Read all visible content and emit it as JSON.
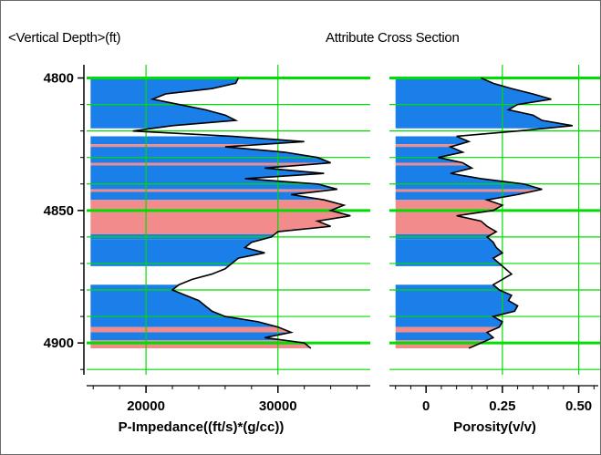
{
  "header": {
    "depth_label": "<Vertical Depth>(ft)",
    "title": "Attribute Cross Section"
  },
  "colors": {
    "grid": "#00dd00",
    "fill_blue": "#1a7fe8",
    "fill_pink": "#f28c8c",
    "curve": "#000000",
    "axis": "#000000"
  },
  "chart_data": {
    "type": "area",
    "depth_axis": {
      "label": "<Vertical Depth>(ft)",
      "range": [
        4795,
        4912
      ],
      "ticks": [
        4800,
        4850,
        4900
      ],
      "reversed": true
    },
    "tracks": [
      {
        "name": "P-Impedance",
        "xlabel": "P-Impedance((ft/s)*(g/cc))",
        "xlim": [
          15500,
          37000
        ],
        "ticks": [
          20000,
          30000
        ],
        "tick_labels": [
          "20000",
          "30000"
        ],
        "grid_x": [
          20000,
          30000
        ],
        "fill_base": 15800,
        "depth": [
          4800,
          4802,
          4804,
          4806,
          4808,
          4810,
          4812,
          4814,
          4816,
          4818,
          4820,
          4822,
          4824,
          4826,
          4828,
          4830,
          4832,
          4834,
          4836,
          4838,
          4840,
          4842,
          4844,
          4846,
          4848,
          4850,
          4852,
          4854,
          4856,
          4858,
          4860,
          4862,
          4864,
          4866,
          4868,
          4870,
          4872,
          4874,
          4876,
          4878,
          4880,
          4882,
          4884,
          4886,
          4888,
          4890,
          4892,
          4894,
          4896,
          4898,
          4900,
          4902
        ],
        "values": [
          27000,
          26800,
          25000,
          21500,
          20500,
          22500,
          24500,
          26000,
          26800,
          22000,
          19000,
          26500,
          32000,
          26000,
          30500,
          33000,
          34000,
          29000,
          33500,
          27500,
          33000,
          34500,
          31000,
          33500,
          35000,
          34000,
          35500,
          33000,
          34000,
          30000,
          29500,
          28000,
          27500,
          29000,
          27000,
          26500,
          26000,
          25000,
          23500,
          22500,
          22000,
          23000,
          24000,
          24500,
          25000,
          26000,
          28500,
          30000,
          31000,
          29000,
          32000,
          32500
        ]
      },
      {
        "name": "Porosity",
        "xlabel": "Porosity(v/v)",
        "xlim": [
          -0.12,
          0.57
        ],
        "ticks": [
          0,
          0.25,
          0.5
        ],
        "tick_labels": [
          "0",
          "0.25",
          "0.50"
        ],
        "grid_x": [
          0.25,
          0.5
        ],
        "fill_base": -0.1,
        "depth": [
          4800,
          4802,
          4804,
          4806,
          4808,
          4810,
          4812,
          4814,
          4816,
          4818,
          4820,
          4822,
          4824,
          4826,
          4828,
          4830,
          4832,
          4834,
          4836,
          4838,
          4840,
          4842,
          4844,
          4846,
          4848,
          4850,
          4852,
          4854,
          4856,
          4858,
          4860,
          4862,
          4864,
          4866,
          4868,
          4870,
          4872,
          4874,
          4876,
          4878,
          4880,
          4882,
          4884,
          4886,
          4888,
          4890,
          4892,
          4894,
          4896,
          4898,
          4900,
          4902
        ],
        "values": [
          0.18,
          0.22,
          0.28,
          0.35,
          0.41,
          0.3,
          0.27,
          0.35,
          0.38,
          0.48,
          0.3,
          0.1,
          0.14,
          0.08,
          0.12,
          0.04,
          0.12,
          0.15,
          0.08,
          0.18,
          0.32,
          0.38,
          0.3,
          0.2,
          0.25,
          0.22,
          0.1,
          0.18,
          0.2,
          0.23,
          0.2,
          0.22,
          0.23,
          0.25,
          0.22,
          0.24,
          0.26,
          0.28,
          0.25,
          0.22,
          0.24,
          0.28,
          0.27,
          0.3,
          0.29,
          0.22,
          0.25,
          0.24,
          0.2,
          0.22,
          0.18,
          0.14
        ]
      }
    ],
    "facies_blocks": [
      {
        "top": 4800,
        "bottom": 4819,
        "facies": "blue"
      },
      {
        "top": 4822,
        "bottom": 4825,
        "facies": "blue"
      },
      {
        "top": 4825,
        "bottom": 4826,
        "facies": "pink"
      },
      {
        "top": 4826,
        "bottom": 4832,
        "facies": "blue"
      },
      {
        "top": 4832,
        "bottom": 4833,
        "facies": "pink"
      },
      {
        "top": 4833,
        "bottom": 4842,
        "facies": "blue"
      },
      {
        "top": 4842,
        "bottom": 4843,
        "facies": "pink"
      },
      {
        "top": 4843,
        "bottom": 4846,
        "facies": "blue"
      },
      {
        "top": 4846,
        "bottom": 4859,
        "facies": "pink"
      },
      {
        "top": 4859,
        "bottom": 4861,
        "facies": "blue"
      },
      {
        "top": 4861,
        "bottom": 4871,
        "facies": "blue"
      },
      {
        "top": 4878,
        "bottom": 4894,
        "facies": "blue"
      },
      {
        "top": 4894,
        "bottom": 4896,
        "facies": "pink"
      },
      {
        "top": 4896,
        "bottom": 4899,
        "facies": "blue"
      },
      {
        "top": 4899,
        "bottom": 4902,
        "facies": "pink"
      }
    ],
    "grid_depths": [
      4800,
      4810,
      4820,
      4830,
      4840,
      4850,
      4860,
      4870,
      4880,
      4890,
      4900,
      4910
    ]
  }
}
